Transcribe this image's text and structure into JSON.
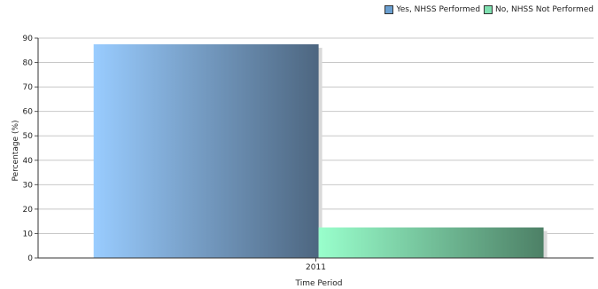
{
  "chart_data": {
    "type": "bar",
    "categories": [
      "2011"
    ],
    "series": [
      {
        "name": "Yes, NHSS Performed",
        "values": [
          87.5
        ],
        "color": "#6a9fd0"
      },
      {
        "name": "No, NHSS Not Performed",
        "values": [
          12.5
        ],
        "color": "#4fb07e"
      }
    ],
    "title": "",
    "xlabel": "Time Period",
    "ylabel": "Percentage (%)",
    "ylim": [
      0,
      90
    ],
    "yticks": [
      "0",
      "10",
      "20",
      "30",
      "40",
      "50",
      "60",
      "70",
      "80",
      "90"
    ],
    "grid": true,
    "legend_position": "top-right"
  }
}
